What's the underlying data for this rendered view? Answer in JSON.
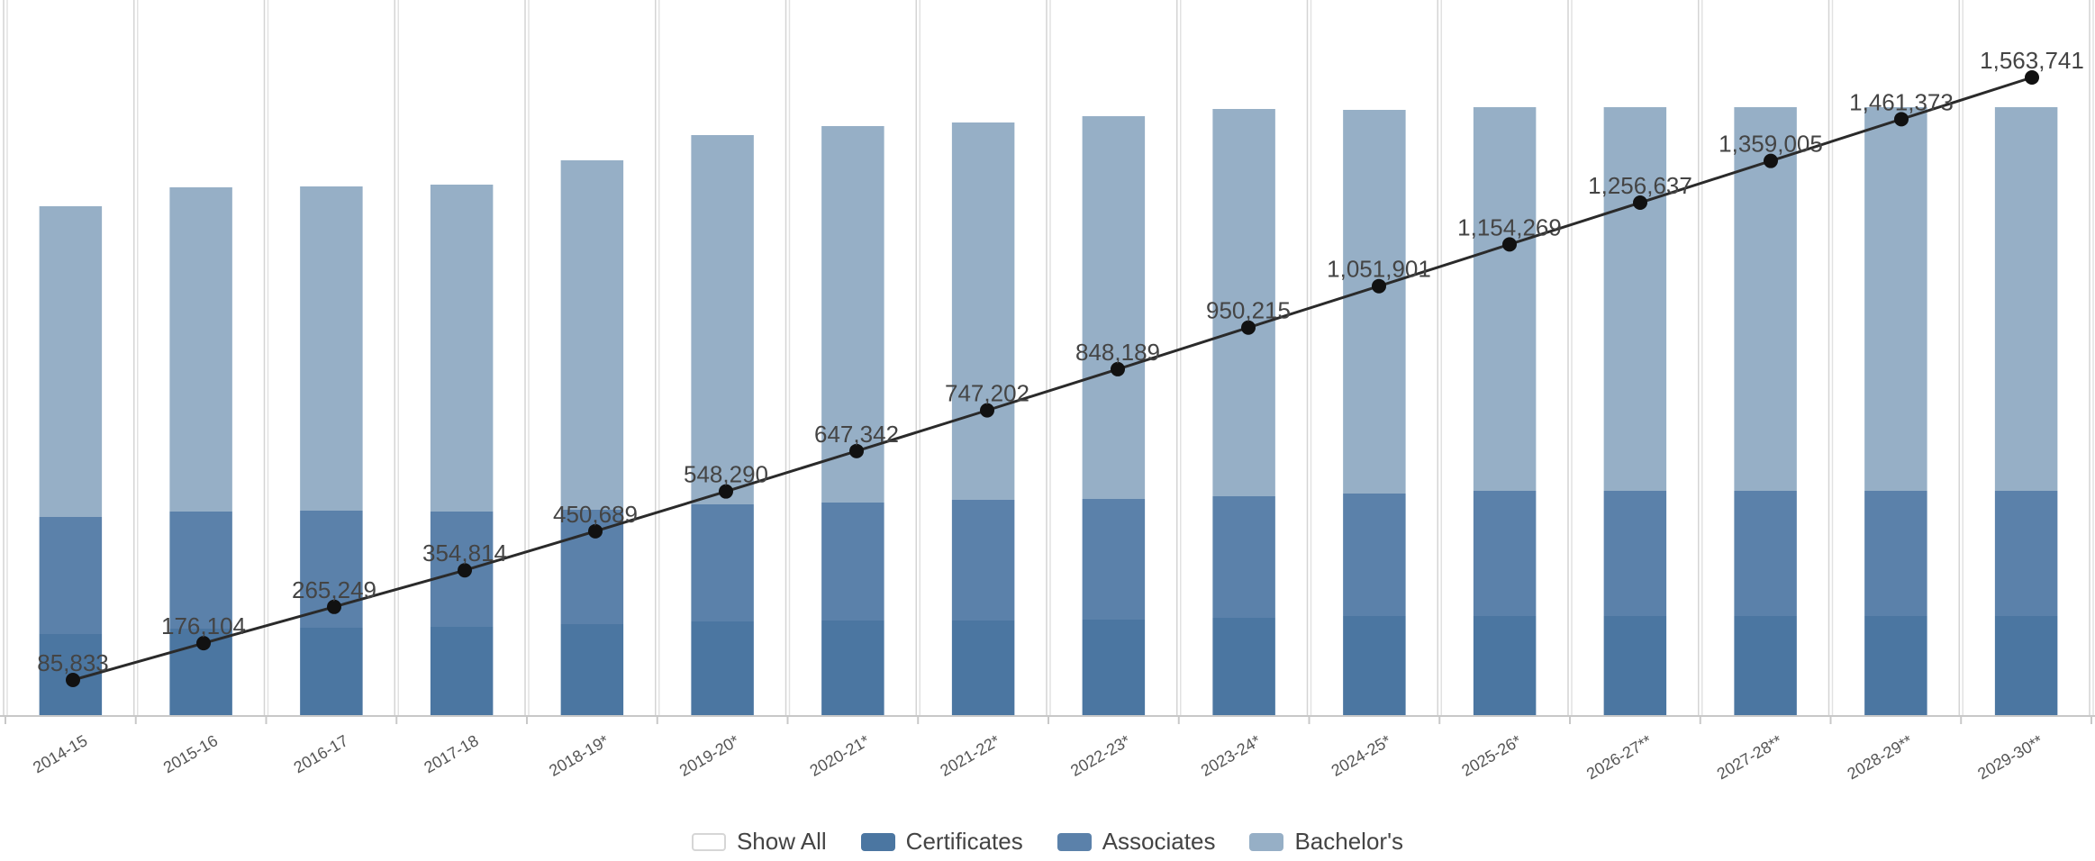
{
  "chart_data": {
    "type": "bar",
    "stacked": true,
    "categories": [
      "2014-15",
      "2015-16",
      "2016-17",
      "2017-18",
      "2018-19*",
      "2019-20*",
      "2020-21*",
      "2021-22*",
      "2022-23*",
      "2023-24*",
      "2024-25*",
      "2025-26*",
      "2026-27**",
      "2027-28**",
      "2028-29**",
      "2029-30**"
    ],
    "series": [
      {
        "name": "Certificates",
        "color": "#4b76a1",
        "values": [
          90,
          96,
          97,
          98,
          101,
          104,
          105,
          105,
          106,
          108,
          110,
          110,
          110,
          110,
          110,
          110
        ]
      },
      {
        "name": "Associates",
        "color": "#5b81aa",
        "values": [
          130,
          130,
          130,
          128,
          127,
          130,
          131,
          134,
          134,
          135,
          136,
          139,
          139,
          139,
          139,
          139
        ]
      },
      {
        "name": "Bachelor's",
        "color": "#96afc6",
        "values": [
          345,
          360,
          360,
          363,
          388,
          410,
          418,
          419,
          425,
          430,
          426,
          426,
          426,
          426,
          426,
          426
        ]
      }
    ],
    "line": {
      "values": [
        85833,
        176104,
        265249,
        354814,
        450689,
        548290,
        647342,
        747202,
        848189,
        950215,
        1051901,
        1154269,
        1256637,
        1359005,
        1461373,
        1563741
      ],
      "labels": [
        "85,833",
        "176,104",
        "265,249",
        "354,814",
        "450,689",
        "548,290",
        "647,342",
        "747,202",
        "848,189",
        "950,215",
        "1,051,901",
        "1,154,269",
        "1,256,637",
        "1,359,005",
        "1,461,373",
        "1,563,741"
      ],
      "color": "#2a2a2a"
    },
    "legend_position": "bottom",
    "grid": false
  },
  "legend": {
    "items": [
      {
        "label": "Show All",
        "color": "#ffffff"
      },
      {
        "label": "Certificates",
        "color": "#4b76a1"
      },
      {
        "label": "Associates",
        "color": "#5b81aa"
      },
      {
        "label": "Bachelor's",
        "color": "#96afc6"
      }
    ]
  }
}
